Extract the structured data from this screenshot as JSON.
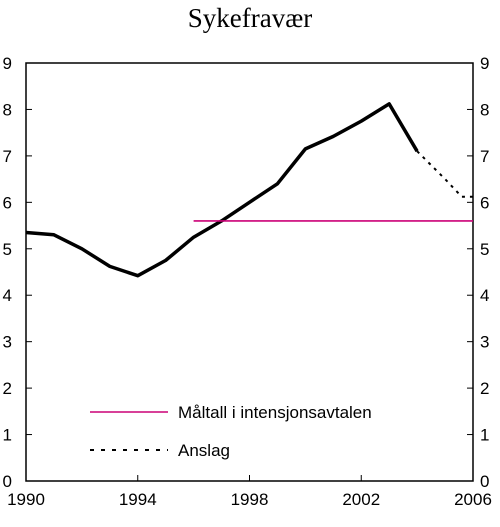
{
  "chart_data": {
    "type": "line",
    "title": "Sykefravær",
    "xlabel": "",
    "ylabel": "",
    "xlim": [
      1990,
      2006
    ],
    "ylim": [
      0,
      9
    ],
    "x_ticks": [
      1990,
      1994,
      1998,
      2002,
      2006
    ],
    "y_ticks": [
      0,
      1,
      2,
      3,
      4,
      5,
      6,
      7,
      8,
      9
    ],
    "y_axis_right": true,
    "grid": false,
    "legend_placement": "bottom-center",
    "series": [
      {
        "name": "",
        "style": "solid",
        "color": "#000000",
        "x": [
          1990,
          1991,
          1992,
          1993,
          1994,
          1995,
          1996,
          1997,
          1998,
          1999,
          2000,
          2001,
          2002,
          2003,
          2004
        ],
        "values": [
          5.35,
          5.3,
          5.0,
          4.62,
          4.42,
          4.75,
          5.25,
          5.6,
          6.0,
          6.4,
          7.15,
          7.42,
          7.75,
          8.12,
          7.1
        ]
      },
      {
        "name": "Anslag",
        "style": "dotted",
        "color": "#000000",
        "x": [
          2004,
          2005,
          2005.6,
          2006
        ],
        "values": [
          7.1,
          6.5,
          6.12,
          6.12
        ]
      },
      {
        "name": "Måltall i intensjonsavtalen",
        "style": "solid",
        "color": "#cc0077",
        "x": [
          1996,
          2006
        ],
        "values": [
          5.6,
          5.6
        ]
      }
    ],
    "legend": [
      {
        "label": "Måltall i intensjonsavtalen",
        "style": "solid",
        "color": "#cc0077"
      },
      {
        "label": "Anslag",
        "style": "dotted",
        "color": "#000000"
      }
    ]
  }
}
